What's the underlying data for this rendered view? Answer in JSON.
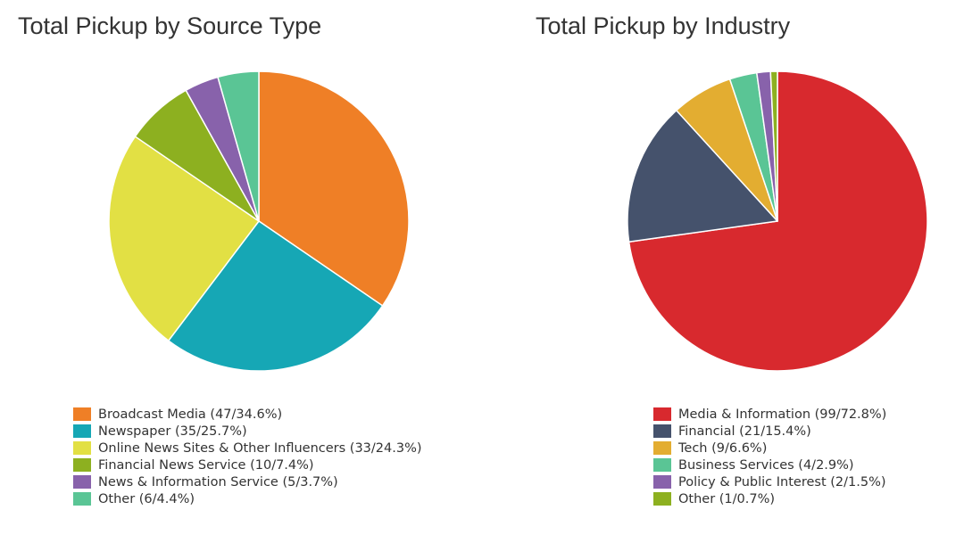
{
  "chart_data": [
    {
      "type": "pie",
      "title": "Total Pickup by Source Type",
      "categories": [
        "Broadcast Media",
        "Newspaper",
        "Online News Sites & Other Influencers",
        "Financial News Service",
        "News & Information Service",
        "Other"
      ],
      "values": [
        47,
        35,
        33,
        10,
        5,
        6
      ],
      "percents": [
        34.6,
        25.7,
        24.3,
        7.4,
        3.7,
        4.4
      ],
      "colors": [
        "#ef7f26",
        "#16a7b5",
        "#e2e044",
        "#8db020",
        "#8862ab",
        "#5ac595"
      ],
      "legend": [
        "Broadcast Media (47/34.6%)",
        "Newspaper (35/25.7%)",
        "Online News Sites & Other Influencers (33/24.3%)",
        "Financial News Service (10/7.4%)",
        "News & Information Service (5/3.7%)",
        "Other (6/4.4%)"
      ],
      "legend_position": "bottom"
    },
    {
      "type": "pie",
      "title": "Total Pickup by Industry",
      "categories": [
        "Media & Information",
        "Financial",
        "Tech",
        "Business Services",
        "Policy & Public Interest",
        "Other"
      ],
      "values": [
        99,
        21,
        9,
        4,
        2,
        1
      ],
      "percents": [
        72.8,
        15.4,
        6.6,
        2.9,
        1.5,
        0.7
      ],
      "colors": [
        "#d8292e",
        "#45526c",
        "#e3ad31",
        "#5ac595",
        "#8862ab",
        "#8db020"
      ],
      "legend": [
        "Media & Information (99/72.8%)",
        "Financial (21/15.4%)",
        "Tech (9/6.6%)",
        "Business Services (4/2.9%)",
        "Policy & Public Interest (2/1.5%)",
        "Other (1/0.7%)"
      ],
      "legend_position": "bottom"
    }
  ]
}
